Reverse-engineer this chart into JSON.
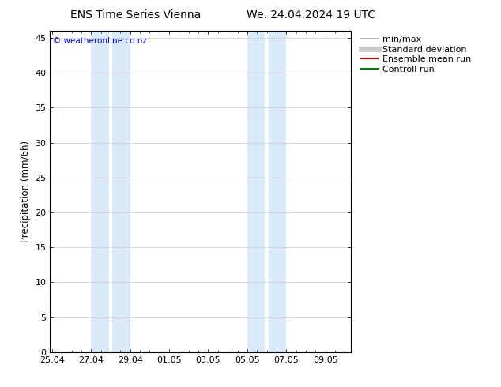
{
  "title_left": "ENS Time Series Vienna",
  "title_right": "We. 24.04.2024 19 UTC",
  "ylabel": "Precipitation (mm/6h)",
  "watermark": "© weatheronline.co.nz",
  "watermark_color": "#0000cc",
  "ylim": [
    0,
    46
  ],
  "yticks": [
    0,
    5,
    10,
    15,
    20,
    25,
    30,
    35,
    40,
    45
  ],
  "xtick_labels": [
    "25.04",
    "27.04",
    "29.04",
    "01.05",
    "03.05",
    "05.05",
    "07.05",
    "09.05"
  ],
  "xtick_positions": [
    0,
    2,
    4,
    6,
    8,
    10,
    12,
    14
  ],
  "xlim": [
    -0.1,
    15.3
  ],
  "shade_bands": [
    {
      "x_start": 2.0,
      "x_end": 2.9,
      "color": "#daeaf8"
    },
    {
      "x_start": 3.1,
      "x_end": 4.0,
      "color": "#daeaf8"
    },
    {
      "x_start": 10.0,
      "x_end": 10.9,
      "color": "#daeaf8"
    },
    {
      "x_start": 11.1,
      "x_end": 12.0,
      "color": "#daeaf8"
    }
  ],
  "legend_entries": [
    {
      "label": "min/max",
      "color": "#aaaaaa",
      "lw": 1.2,
      "style": "solid"
    },
    {
      "label": "Standard deviation",
      "color": "#cccccc",
      "lw": 5,
      "style": "solid"
    },
    {
      "label": "Ensemble mean run",
      "color": "#cc0000",
      "lw": 1.5,
      "style": "solid"
    },
    {
      "label": "Controll run",
      "color": "#007700",
      "lw": 1.5,
      "style": "solid"
    }
  ],
  "bg_color": "#ffffff",
  "plot_bg_color": "#ffffff",
  "grid_color": "#cccccc",
  "title_fontsize": 10,
  "tick_fontsize": 8,
  "ylabel_fontsize": 8.5,
  "legend_fontsize": 8,
  "watermark_fontsize": 7.5
}
